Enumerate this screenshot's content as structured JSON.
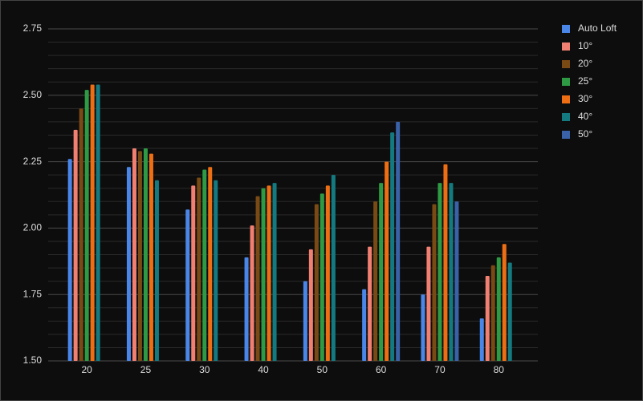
{
  "chart_data": {
    "type": "bar",
    "categories": [
      "20",
      "25",
      "30",
      "40",
      "50",
      "60",
      "70",
      "80"
    ],
    "series": [
      {
        "name": "Auto Loft",
        "color": "#4a86e8",
        "values": [
          2.26,
          2.23,
          2.07,
          1.89,
          1.8,
          1.77,
          1.75,
          1.66
        ]
      },
      {
        "name": "10°",
        "color": "#f28072",
        "values": [
          2.37,
          2.3,
          2.16,
          2.01,
          1.92,
          1.93,
          1.93,
          1.82
        ]
      },
      {
        "name": "20°",
        "color": "#7a4a14",
        "values": [
          2.45,
          2.29,
          2.19,
          2.12,
          2.09,
          2.1,
          2.09,
          1.86
        ]
      },
      {
        "name": "25°",
        "color": "#2e9a44",
        "values": [
          2.52,
          2.3,
          2.22,
          2.15,
          2.13,
          2.17,
          2.17,
          1.89
        ]
      },
      {
        "name": "30°",
        "color": "#ee6e14",
        "values": [
          2.54,
          2.28,
          2.23,
          2.16,
          2.16,
          2.25,
          2.24,
          1.94
        ]
      },
      {
        "name": "40°",
        "color": "#137a80",
        "values": [
          2.54,
          2.18,
          2.18,
          2.17,
          2.2,
          2.36,
          2.17,
          1.87
        ]
      },
      {
        "name": "50°",
        "color": "#3a62a8",
        "values": [
          null,
          null,
          null,
          null,
          null,
          2.4,
          2.1,
          null
        ]
      }
    ],
    "ylim": [
      1.5,
      2.75
    ],
    "yticks": [
      {
        "value": 1.5,
        "label": "1.50"
      },
      1.75,
      {
        "value": 2,
        "label": "2.00"
      },
      2.25,
      {
        "value": 2.5,
        "label": "2.50"
      },
      2.75
    ],
    "minor_yticks": [
      1.55,
      1.6,
      1.65,
      1.7,
      1.8,
      1.85,
      1.9,
      1.95,
      2.05,
      2.1,
      2.15,
      2.2,
      2.3,
      2.35,
      2.4,
      2.45,
      2.55,
      2.6,
      2.65,
      2.7
    ],
    "grid": true,
    "legend": "top-right"
  }
}
